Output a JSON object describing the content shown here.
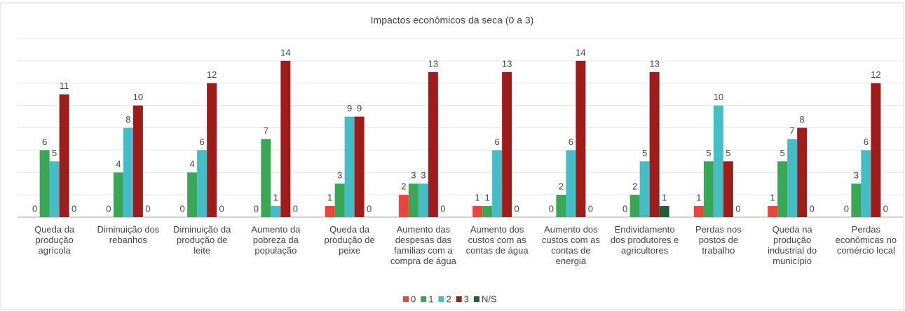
{
  "chart_data": {
    "type": "bar",
    "title": "Impactos econômicos da seca (0 a 3)",
    "categories": [
      "Queda da produção agrícola",
      "Diminuição dos rebanhos",
      "Diminuição da produção de leite",
      "Aumento da pobreza da população",
      "Queda da produção de peixe",
      "Aumento das despesas das famílias com a compra de água",
      "Aumento dos custos com as contas de água",
      "Aumento dos custos com as contas de energia",
      "Endividamento dos produtores e agricultores",
      "Perdas nos postos de trabalho",
      "Queda na produção industrial do município",
      "Perdas econômicas no comércio local"
    ],
    "series": [
      {
        "name": "0",
        "color": "#e8453c",
        "values": [
          0,
          0,
          0,
          0,
          1,
          2,
          1,
          0,
          0,
          1,
          1,
          0
        ]
      },
      {
        "name": "1",
        "color": "#3aa757",
        "values": [
          6,
          4,
          4,
          7,
          3,
          3,
          1,
          2,
          2,
          5,
          5,
          3
        ]
      },
      {
        "name": "2",
        "color": "#46bdc6",
        "values": [
          5,
          8,
          6,
          1,
          9,
          3,
          6,
          6,
          5,
          10,
          7,
          6
        ]
      },
      {
        "name": "3",
        "color": "#9e1c1c",
        "values": [
          11,
          10,
          12,
          14,
          9,
          13,
          13,
          14,
          13,
          5,
          8,
          12
        ]
      },
      {
        "name": "N/S",
        "color": "#1e5e3b",
        "values": [
          0,
          0,
          0,
          0,
          0,
          0,
          0,
          0,
          1,
          0,
          0,
          0
        ]
      }
    ],
    "ylim": [
      0,
      16
    ],
    "yticks": [
      0,
      2,
      4,
      6,
      8,
      10,
      12,
      14,
      16
    ],
    "grid": true,
    "legend": "bottom"
  }
}
